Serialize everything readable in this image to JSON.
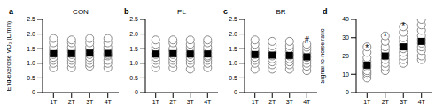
{
  "chart_data": [
    {
      "type": "scatter",
      "panel_label": "a",
      "title": "CON",
      "y_label": "End-exercise V̇O₂ (L/min)",
      "categories": [
        "1T",
        "2T",
        "3T",
        "4T"
      ],
      "points": [
        [
          0.85,
          1.0,
          1.1,
          1.2,
          1.3,
          1.35,
          1.45,
          1.55,
          1.7,
          1.85
        ],
        [
          0.85,
          1.0,
          1.1,
          1.2,
          1.3,
          1.4,
          1.45,
          1.55,
          1.7,
          1.8
        ],
        [
          0.9,
          1.0,
          1.1,
          1.2,
          1.3,
          1.4,
          1.5,
          1.55,
          1.7,
          1.85
        ],
        [
          0.85,
          1.0,
          1.1,
          1.25,
          1.3,
          1.35,
          1.45,
          1.55,
          1.7,
          1.85
        ]
      ],
      "means": [
        1.33,
        1.33,
        1.35,
        1.34
      ],
      "sd": [
        0.31,
        0.3,
        0.31,
        0.31
      ],
      "ylim": [
        0,
        2.5
      ],
      "yticks": [
        0,
        0.5,
        {
          "value": 1,
          "label": "1.0"
        },
        1.5,
        {
          "value": 2,
          "label": "2.0"
        },
        2.5
      ],
      "color": "#000000"
    },
    {
      "type": "scatter",
      "panel_label": "b",
      "title": "PL",
      "categories": [
        "1T",
        "2T",
        "3T",
        "4T"
      ],
      "points": [
        [
          0.85,
          1.0,
          1.1,
          1.2,
          1.3,
          1.35,
          1.45,
          1.55,
          1.65,
          1.8
        ],
        [
          0.85,
          1.0,
          1.1,
          1.2,
          1.3,
          1.4,
          1.45,
          1.5,
          1.7,
          1.8
        ],
        [
          0.8,
          1.0,
          1.1,
          1.2,
          1.3,
          1.35,
          1.45,
          1.55,
          1.65,
          1.8
        ],
        [
          0.85,
          1.0,
          1.1,
          1.2,
          1.25,
          1.35,
          1.45,
          1.55,
          1.7,
          1.8
        ]
      ],
      "means": [
        1.32,
        1.33,
        1.32,
        1.32
      ],
      "sd": [
        0.3,
        0.3,
        0.3,
        0.3
      ],
      "ylim": [
        0,
        2.5
      ],
      "yticks": [
        0,
        0.5,
        {
          "value": 1,
          "label": "1.0"
        },
        1.5,
        {
          "value": 2,
          "label": "2.0"
        },
        2.5
      ],
      "color": "#000000"
    },
    {
      "type": "scatter",
      "panel_label": "c",
      "title": "BR",
      "categories": [
        "1T",
        "2T",
        "3T",
        "4T"
      ],
      "points": [
        [
          0.8,
          1.0,
          1.1,
          1.2,
          1.3,
          1.35,
          1.4,
          1.5,
          1.65,
          1.8
        ],
        [
          0.8,
          0.95,
          1.05,
          1.15,
          1.25,
          1.35,
          1.4,
          1.5,
          1.6,
          1.75
        ],
        [
          0.8,
          0.95,
          1.05,
          1.15,
          1.25,
          1.3,
          1.4,
          1.5,
          1.6,
          1.75
        ],
        [
          0.75,
          0.9,
          1.0,
          1.1,
          1.2,
          1.25,
          1.35,
          1.45,
          1.55,
          1.65
        ]
      ],
      "means": [
        1.3,
        1.28,
        1.27,
        1.22
      ],
      "sd": [
        0.3,
        0.3,
        0.29,
        0.28
      ],
      "ylim": [
        0,
        2.5
      ],
      "yticks": [
        0,
        0.5,
        {
          "value": 1,
          "label": "1.0"
        },
        1.5,
        {
          "value": 2,
          "label": "2.0"
        },
        2.5
      ],
      "annotations": [
        {
          "category": "4T",
          "text": "#"
        }
      ],
      "color": "#000000"
    },
    {
      "type": "scatter",
      "panel_label": "d",
      "y_label": "Signal-to-noise ratio",
      "categories": [
        "1T",
        "2T",
        "3T",
        "4T"
      ],
      "points": [
        [
          8,
          10,
          11,
          12,
          14,
          15,
          17,
          19,
          22,
          25
        ],
        [
          12,
          14,
          16,
          18,
          20,
          21,
          23,
          25,
          28,
          31
        ],
        [
          16,
          18,
          20,
          22,
          24,
          26,
          28,
          30,
          33,
          36
        ],
        [
          18,
          20,
          23,
          25,
          27,
          29,
          31,
          34,
          37,
          40
        ]
      ],
      "means": [
        15,
        20,
        25,
        28
      ],
      "sd": [
        5,
        6,
        7,
        7
      ],
      "ylim": [
        0,
        40
      ],
      "yticks": [
        0,
        10,
        20,
        30,
        40
      ],
      "annotations": [
        {
          "category": "1T",
          "text": "*"
        },
        {
          "category": "2T",
          "text": "*"
        },
        {
          "category": "3T",
          "text": "*"
        }
      ],
      "color": "#000000"
    }
  ]
}
